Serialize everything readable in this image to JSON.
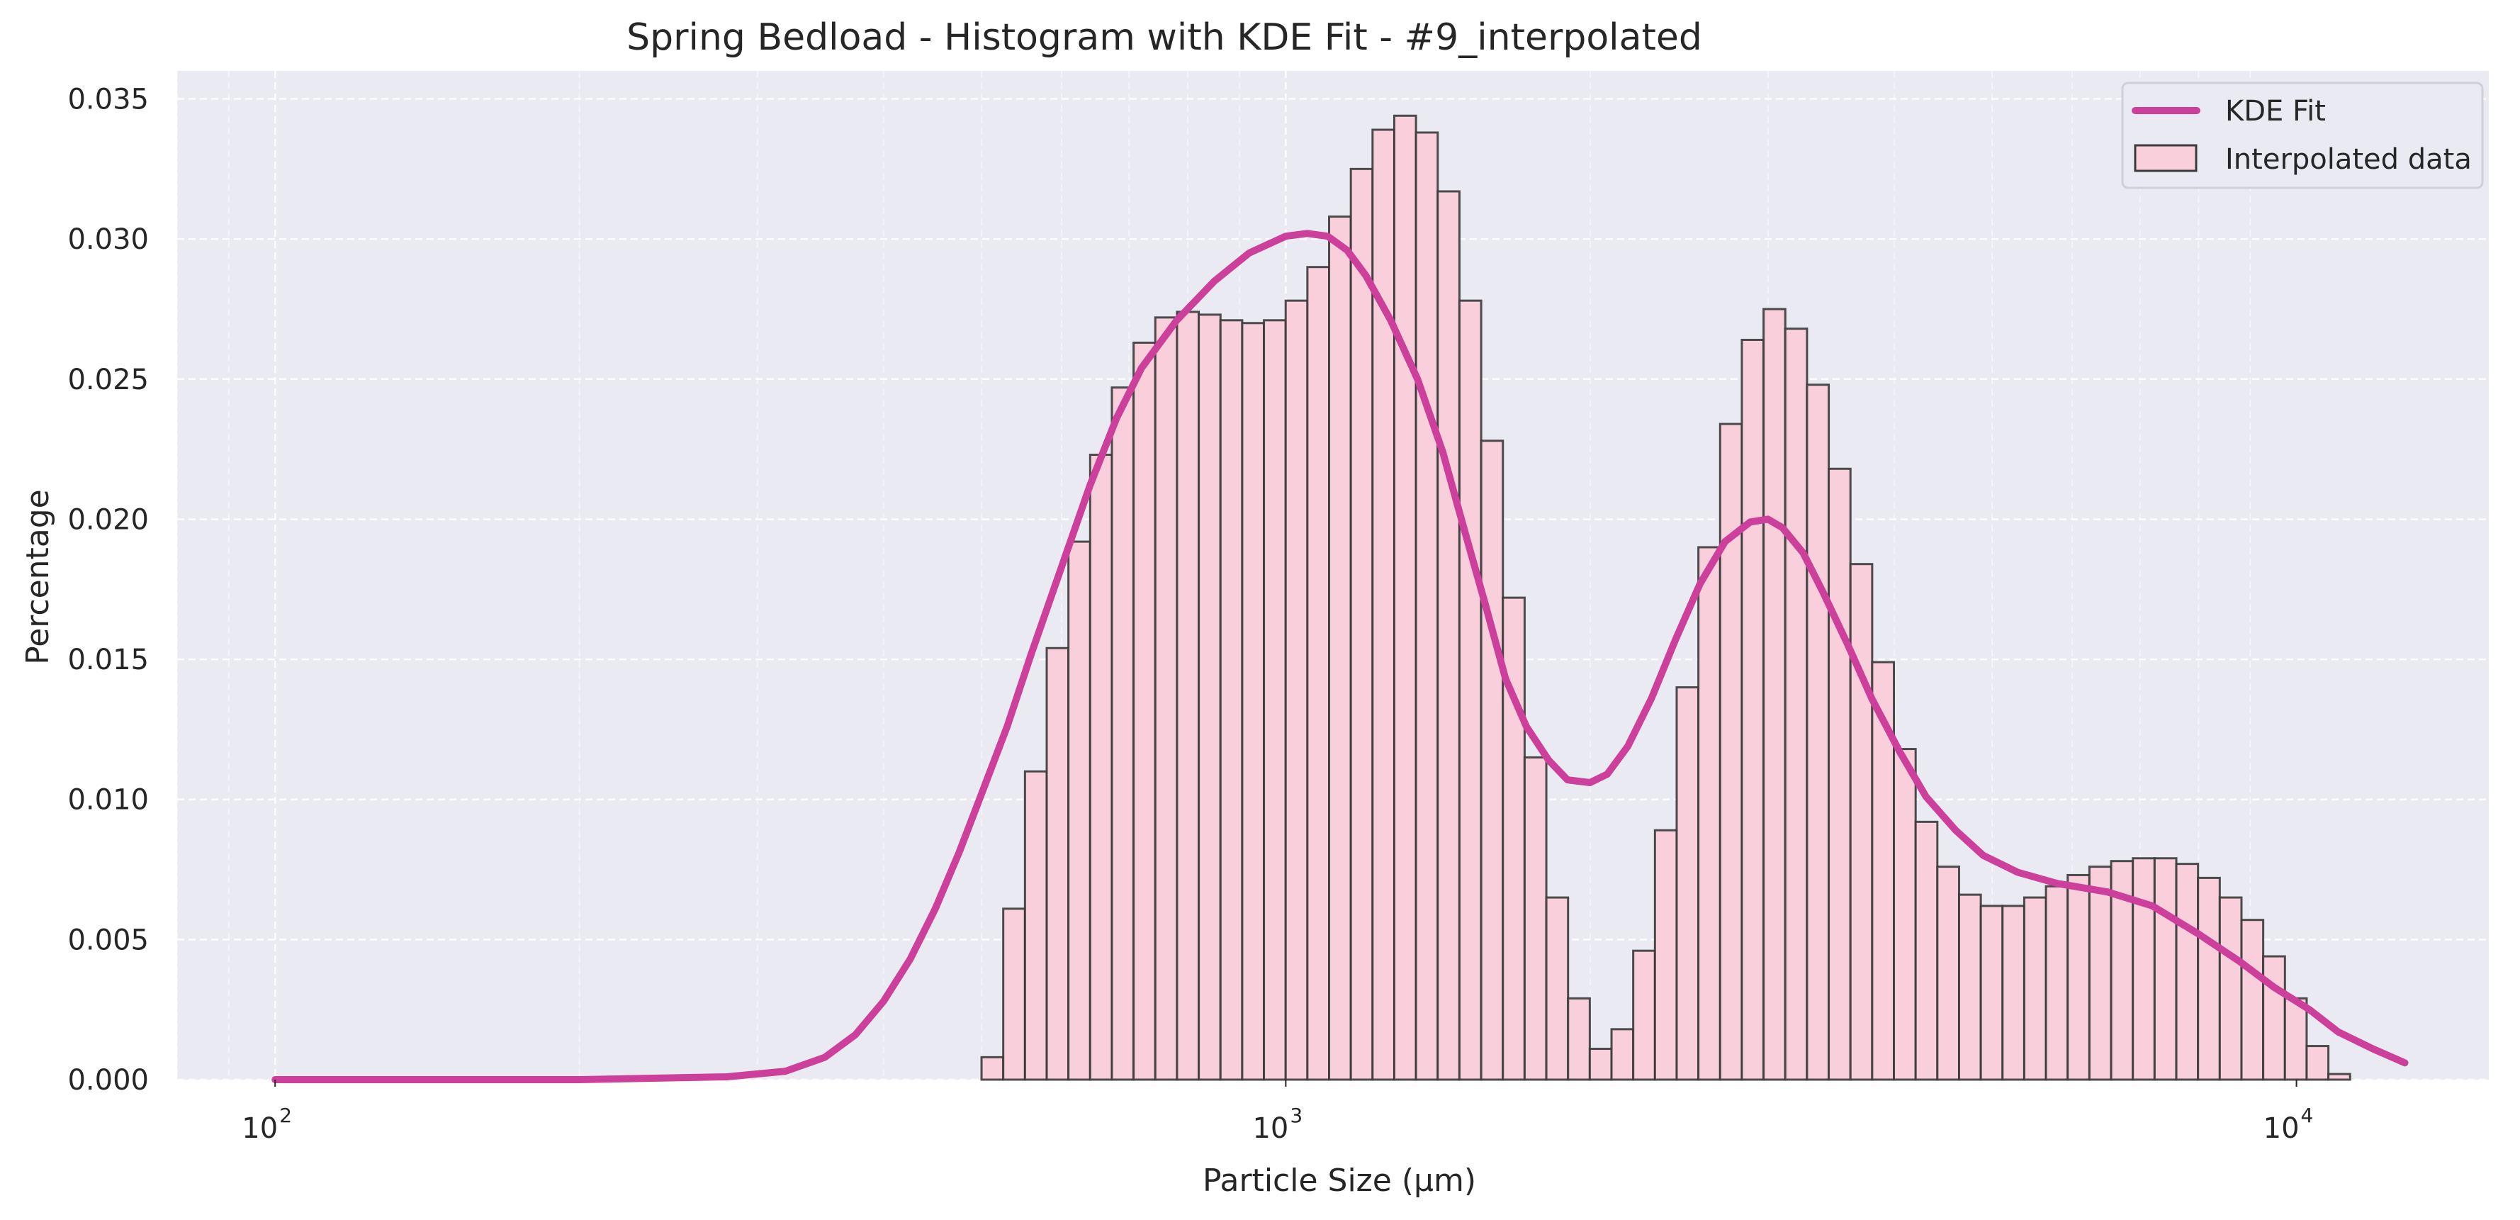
{
  "chart_data": {
    "type": "bar",
    "title": "Spring Bedload - Histogram with KDE Fit - #9_interpolated",
    "xlabel": "Particle Size (μm)",
    "ylabel": "Percentage",
    "xscale": "log",
    "xlim": [
      80,
      15500
    ],
    "ylim": [
      0,
      0.036
    ],
    "grid": true,
    "legend_position": "top-right",
    "x_ticks": [
      {
        "value": 100,
        "base": "10",
        "exp": "2"
      },
      {
        "value": 1000,
        "base": "10",
        "exp": "3"
      },
      {
        "value": 10000,
        "base": "10",
        "exp": "4"
      }
    ],
    "y_ticks": [
      {
        "value": 0,
        "label": "0.000"
      },
      {
        "value": 0.005,
        "label": "0.005"
      },
      {
        "value": 0.01,
        "label": "0.010"
      },
      {
        "value": 0.015,
        "label": "0.015"
      },
      {
        "value": 0.02,
        "label": "0.020"
      },
      {
        "value": 0.025,
        "label": "0.025"
      },
      {
        "value": 0.03,
        "label": "0.030"
      },
      {
        "value": 0.035,
        "label": "0.035"
      }
    ],
    "colors": {
      "plot_background": "#eaeaf2",
      "grid": "#ffffff",
      "bar_fill": "#f8cfdb",
      "bar_edge": "#3a3a3a",
      "kde_line": "#cc3f9a"
    },
    "series": [
      {
        "name": "Interpolated data",
        "kind": "histogram",
        "bin_start": 500,
        "bin_end": 11300,
        "values": [
          0.0008,
          0.0061,
          0.011,
          0.0154,
          0.0192,
          0.0223,
          0.0247,
          0.0263,
          0.0272,
          0.0274,
          0.0273,
          0.0271,
          0.027,
          0.0271,
          0.0278,
          0.029,
          0.0308,
          0.0325,
          0.0339,
          0.0344,
          0.0338,
          0.0317,
          0.0278,
          0.0228,
          0.0172,
          0.0115,
          0.0065,
          0.0029,
          0.0011,
          0.0018,
          0.0046,
          0.0089,
          0.014,
          0.019,
          0.0234,
          0.0264,
          0.0275,
          0.0268,
          0.0248,
          0.0218,
          0.0184,
          0.0149,
          0.0118,
          0.0092,
          0.0076,
          0.0066,
          0.0062,
          0.0062,
          0.0065,
          0.0069,
          0.0073,
          0.0076,
          0.0078,
          0.0079,
          0.0079,
          0.0077,
          0.0072,
          0.0065,
          0.0057,
          0.0044,
          0.0029,
          0.0012,
          0.0002
        ]
      },
      {
        "name": "KDE Fit",
        "kind": "line",
        "points": [
          [
            100,
            0
          ],
          [
            200,
            0
          ],
          [
            280,
            0.0001
          ],
          [
            320,
            0.0003
          ],
          [
            350,
            0.0008
          ],
          [
            375,
            0.0016
          ],
          [
            400,
            0.0028
          ],
          [
            425,
            0.0043
          ],
          [
            450,
            0.0061
          ],
          [
            475,
            0.0081
          ],
          [
            500,
            0.0102
          ],
          [
            530,
            0.0126
          ],
          [
            560,
            0.0152
          ],
          [
            600,
            0.0183
          ],
          [
            640,
            0.0212
          ],
          [
            680,
            0.0236
          ],
          [
            720,
            0.0254
          ],
          [
            780,
            0.0271
          ],
          [
            850,
            0.0285
          ],
          [
            920,
            0.0295
          ],
          [
            1000,
            0.0301
          ],
          [
            1050,
            0.0302
          ],
          [
            1100,
            0.0301
          ],
          [
            1150,
            0.0296
          ],
          [
            1200,
            0.0287
          ],
          [
            1270,
            0.0271
          ],
          [
            1350,
            0.025
          ],
          [
            1430,
            0.0224
          ],
          [
            1500,
            0.0197
          ],
          [
            1580,
            0.0168
          ],
          [
            1650,
            0.0143
          ],
          [
            1730,
            0.0126
          ],
          [
            1820,
            0.0114
          ],
          [
            1900,
            0.0107
          ],
          [
            2000,
            0.0106
          ],
          [
            2080,
            0.0109
          ],
          [
            2180,
            0.0119
          ],
          [
            2300,
            0.0136
          ],
          [
            2430,
            0.0157
          ],
          [
            2570,
            0.0177
          ],
          [
            2720,
            0.0192
          ],
          [
            2880,
            0.0199
          ],
          [
            3000,
            0.02
          ],
          [
            3100,
            0.0197
          ],
          [
            3250,
            0.0188
          ],
          [
            3400,
            0.0174
          ],
          [
            3600,
            0.0155
          ],
          [
            3800,
            0.0136
          ],
          [
            4050,
            0.0117
          ],
          [
            4300,
            0.0101
          ],
          [
            4600,
            0.0089
          ],
          [
            4900,
            0.008
          ],
          [
            5300,
            0.0074
          ],
          [
            5800,
            0.007
          ],
          [
            6500,
            0.0067
          ],
          [
            7200,
            0.0062
          ],
          [
            8000,
            0.0052
          ],
          [
            8800,
            0.0042
          ],
          [
            9500,
            0.0033
          ],
          [
            10300,
            0.0025
          ],
          [
            11000,
            0.0017
          ],
          [
            11900,
            0.0011
          ],
          [
            12800,
            0.0006
          ]
        ]
      }
    ]
  }
}
